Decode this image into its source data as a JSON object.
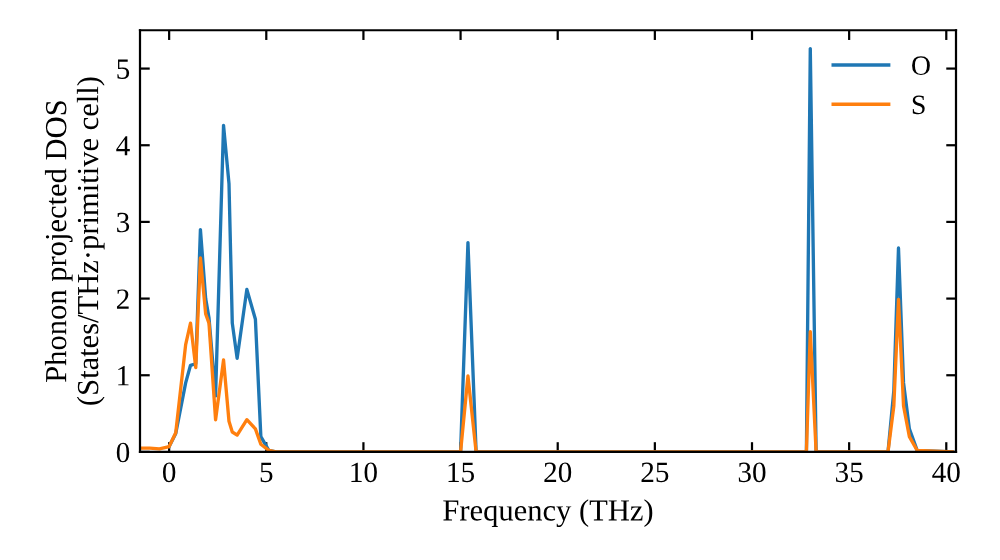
{
  "chart_data": {
    "type": "line",
    "xlabel": "Frequency (THz)",
    "ylabel": "Phonon projected DOS\n(States/THz·primitive cell)",
    "x": [
      -1.5,
      -1,
      -0.5,
      0,
      0.34,
      0.85,
      1.1,
      1.37,
      1.61,
      1.88,
      2.05,
      2.39,
      2.8,
      3.08,
      3.25,
      3.5,
      4.0,
      4.44,
      4.72,
      5.13,
      5.5,
      15.0,
      15.38,
      15.8,
      32.8,
      33.0,
      33.3,
      37.0,
      37.3,
      37.54,
      37.8,
      38.1,
      38.5,
      40.3
    ],
    "series": [
      {
        "name": "O",
        "color": "#1f77b4",
        "values": [
          null,
          null,
          null,
          0.07,
          0.24,
          0.9,
          1.13,
          1.15,
          2.9,
          2.0,
          1.75,
          0.73,
          4.26,
          3.5,
          1.68,
          1.22,
          2.12,
          1.73,
          0.2,
          0.02,
          0,
          0,
          2.73,
          0,
          0,
          5.26,
          0,
          0,
          0.8,
          2.66,
          0.9,
          0.3,
          0.02,
          0
        ]
      },
      {
        "name": "S",
        "color": "#ff7f0e",
        "values": [
          0.05,
          0.05,
          0.04,
          0.07,
          0.25,
          1.4,
          1.68,
          1.1,
          2.53,
          1.8,
          1.68,
          0.42,
          1.2,
          0.4,
          0.26,
          0.22,
          0.42,
          0.3,
          0.1,
          0.02,
          0,
          0,
          0.99,
          0,
          0,
          1.57,
          0,
          0,
          0.6,
          1.99,
          0.6,
          0.2,
          0.02,
          0
        ]
      }
    ],
    "xlim": [
      -1.5,
      40.5
    ],
    "ylim": [
      0,
      5.5
    ],
    "xticks": [
      0,
      5,
      10,
      15,
      20,
      25,
      30,
      35,
      40
    ],
    "yticks": [
      0,
      1,
      2,
      3,
      4,
      5
    ],
    "grid": false,
    "legend": "top right",
    "marker": "none",
    "line_style": "solid"
  }
}
